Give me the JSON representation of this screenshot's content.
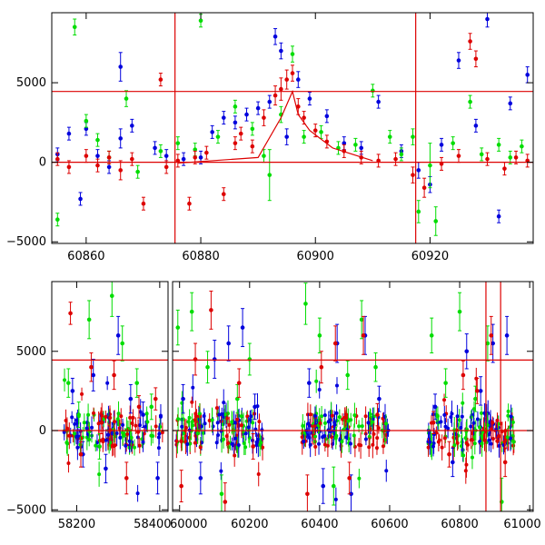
{
  "chart_data": [
    {
      "type": "scatter",
      "title": "",
      "xlabel": "",
      "ylabel": "",
      "xlim": [
        60854,
        60938
      ],
      "ylim": [
        -5100,
        9400
      ],
      "x_ticks": [
        60860,
        60880,
        60900,
        60920
      ],
      "y_ticks": [
        -5000,
        0,
        5000
      ],
      "grid": false,
      "legend": "none",
      "reference_lines": {
        "horizontal": [
          4450,
          0
        ],
        "vertical": [
          60875.5,
          60917.5
        ]
      },
      "colors": {
        "series_a": "#0000dd",
        "series_b": "#00dd00",
        "series_c": "#dd0000",
        "reference": "#dd0000"
      },
      "model_curve": {
        "x": [
          60876,
          60890,
          60894,
          60896,
          60897,
          60899,
          60903,
          60910
        ],
        "y": [
          -50,
          300,
          2800,
          4450,
          3000,
          2000,
          900,
          100
        ]
      },
      "series": [
        {
          "x": [
            60855,
            60857,
            60859,
            60860,
            60862,
            60864,
            60866,
            60866,
            60868,
            60872,
            60874,
            60877,
            60880,
            60882,
            60884,
            60886,
            60888,
            60890,
            60892,
            60893,
            60894,
            60895,
            60897,
            60899,
            60902,
            60905,
            60908,
            60911,
            60915,
            60918,
            60920,
            60922,
            60925,
            60928,
            60930,
            60932,
            60934,
            60937
          ],
          "y": [
            500,
            1800,
            -2300,
            2100,
            400,
            -300,
            6000,
            1500,
            2300,
            900,
            400,
            200,
            300,
            1900,
            2800,
            2500,
            3000,
            3400,
            3800,
            7900,
            7000,
            1600,
            5200,
            4000,
            2900,
            1200,
            900,
            3800,
            700,
            -500,
            -1400,
            1100,
            6400,
            2300,
            9000,
            -3400,
            3700,
            5500
          ],
          "err": [
            400,
            400,
            400,
            400,
            400,
            400,
            900,
            600,
            400,
            400,
            400,
            400,
            400,
            400,
            400,
            400,
            400,
            400,
            400,
            500,
            500,
            500,
            500,
            400,
            400,
            400,
            400,
            400,
            400,
            500,
            500,
            400,
            500,
            400,
            500,
            400,
            400,
            500
          ]
        },
        {
          "x": [
            60855,
            60858,
            60860,
            60862,
            60864,
            60867,
            60869,
            60873,
            60876,
            60879,
            60880,
            60883,
            60886,
            60889,
            60891,
            60892,
            60894,
            60896,
            60898,
            60901,
            60904,
            60907,
            60910,
            60913,
            60915,
            60917,
            60918,
            60920,
            60921,
            60924,
            60927,
            60929,
            60932,
            60934,
            60936
          ],
          "y": [
            -3600,
            8500,
            2600,
            1400,
            300,
            4000,
            -600,
            700,
            1200,
            800,
            8900,
            1600,
            3500,
            2100,
            400,
            -800,
            3000,
            6800,
            1600,
            1900,
            900,
            1100,
            4500,
            1600,
            500,
            1600,
            -3100,
            -200,
            -3700,
            1200,
            3800,
            500,
            1100,
            300,
            1000
          ],
          "err": [
            400,
            500,
            400,
            400,
            400,
            500,
            400,
            400,
            400,
            400,
            400,
            400,
            400,
            400,
            400,
            1600,
            500,
            500,
            400,
            400,
            400,
            400,
            400,
            400,
            400,
            500,
            700,
            1400,
            900,
            400,
            400,
            400,
            400,
            400,
            400
          ]
        },
        {
          "x": [
            60855,
            60857,
            60860,
            60862,
            60864,
            60866,
            60868,
            60870,
            60873,
            60874,
            60876,
            60878,
            60879,
            60881,
            60884,
            60886,
            60887,
            60889,
            60891,
            60893,
            60894,
            60895,
            60896,
            60897,
            60898,
            60900,
            60902,
            60905,
            60908,
            60911,
            60914,
            60917,
            60919,
            60922,
            60925,
            60927,
            60928,
            60930,
            60933,
            60935,
            60937
          ],
          "y": [
            200,
            -300,
            400,
            -200,
            300,
            -500,
            200,
            -2600,
            5200,
            -300,
            100,
            -2600,
            300,
            600,
            -2000,
            1200,
            1800,
            1000,
            2800,
            4200,
            4600,
            5200,
            5600,
            3500,
            2800,
            2000,
            1300,
            700,
            300,
            100,
            200,
            -800,
            -1600,
            -100,
            400,
            7600,
            6500,
            200,
            -400,
            300,
            100
          ],
          "err": [
            400,
            400,
            400,
            400,
            400,
            600,
            400,
            400,
            400,
            400,
            400,
            400,
            400,
            400,
            400,
            400,
            400,
            400,
            500,
            600,
            700,
            600,
            500,
            500,
            400,
            400,
            400,
            400,
            400,
            400,
            400,
            500,
            600,
            400,
            400,
            500,
            500,
            400,
            400,
            400,
            400
          ]
        }
      ]
    },
    {
      "type": "scatter",
      "title": "",
      "xlabel": "",
      "ylabel": "",
      "xlim": [
        58140,
        61010
      ],
      "ylim": [
        -5100,
        9400
      ],
      "x_ticks": [
        58200,
        58400,
        60000,
        60200,
        60400,
        60600,
        60800,
        61000
      ],
      "x_tick_labels": [
        "58200",
        "58400",
        "60000",
        "60200",
        "60400",
        "60600",
        "60800",
        "61000"
      ],
      "y_ticks": [
        -5000,
        0,
        5000
      ],
      "grid": false,
      "legend": "none",
      "axis_break": "between 58420 and 59980",
      "reference_lines": {
        "horizontal": [
          4450,
          0
        ],
        "vertical": [
          60875,
          60917
        ]
      },
      "observing_seasons": [
        [
          58170,
          58410
        ],
        [
          59990,
          60240
        ],
        [
          60350,
          60600
        ],
        [
          60710,
          60960
        ]
      ],
      "colors": {
        "series_a": "#0000dd",
        "series_b": "#00dd00",
        "series_c": "#dd0000",
        "reference": "#dd0000"
      },
      "series": [
        {
          "x": [
            58190,
            58215,
            58240,
            58270,
            58300,
            58330,
            58360,
            58395,
            60010,
            60060,
            60100,
            60140,
            60180,
            60215,
            60370,
            60410,
            60450,
            60490,
            60530,
            60570,
            60730,
            60780,
            60820,
            60860,
            60895,
            60935
          ],
          "y": [
            2500,
            -1500,
            3500,
            -2400,
            6000,
            2000,
            1000,
            -3000,
            2000,
            -3000,
            4500,
            5500,
            6500,
            1500,
            3000,
            -3500,
            5500,
            -4000,
            6000,
            2000,
            1500,
            -2000,
            5000,
            2500,
            5500,
            6000
          ],
          "err": [
            800,
            800,
            1000,
            900,
            1200,
            900,
            800,
            1000,
            900,
            1000,
            1200,
            1100,
            1200,
            800,
            900,
            1100,
            1200,
            1200,
            1200,
            800,
            800,
            900,
            1100,
            900,
            1200,
            1200
          ]
        },
        {
          "x": [
            58180,
            58205,
            58230,
            58255,
            58285,
            58310,
            58345,
            58380,
            59995,
            60035,
            60080,
            60120,
            60165,
            60200,
            60360,
            60400,
            60440,
            60480,
            60520,
            60560,
            60720,
            60760,
            60800,
            60845,
            60880,
            60920
          ],
          "y": [
            3000,
            1000,
            7000,
            -1000,
            8500,
            5500,
            3000,
            1500,
            6500,
            7500,
            4000,
            -4000,
            2000,
            4500,
            8000,
            6000,
            -3500,
            3500,
            7000,
            4000,
            6000,
            3000,
            7500,
            2000,
            5500,
            -4500
          ],
          "err": [
            900,
            800,
            1200,
            800,
            1300,
            1100,
            900,
            800,
            1100,
            1200,
            1000,
            1200,
            900,
            1000,
            1300,
            1100,
            1200,
            900,
            1200,
            900,
            1100,
            900,
            1200,
            800,
            1100,
            1500
          ]
        },
        {
          "x": [
            58185,
            58210,
            58235,
            58260,
            58290,
            58320,
            58350,
            58390,
            60005,
            60045,
            60090,
            60130,
            60170,
            60210,
            60365,
            60405,
            60445,
            60485,
            60525,
            60565,
            60725,
            60770,
            60810,
            60850,
            60890,
            60930
          ],
          "y": [
            7400,
            -1500,
            4000,
            500,
            3500,
            -3000,
            1500,
            2000,
            -3500,
            4500,
            7600,
            -4500,
            3000,
            -1000,
            -4000,
            4000,
            5500,
            -3000,
            6000,
            1000,
            500,
            -1500,
            3500,
            2500,
            6000,
            -2000
          ],
          "err": [
            700,
            800,
            900,
            700,
            900,
            1000,
            700,
            700,
            1000,
            1000,
            1200,
            1200,
            900,
            800,
            1200,
            1000,
            1100,
            1000,
            1200,
            700,
            700,
            800,
            900,
            800,
            1200,
            900
          ]
        }
      ]
    }
  ]
}
